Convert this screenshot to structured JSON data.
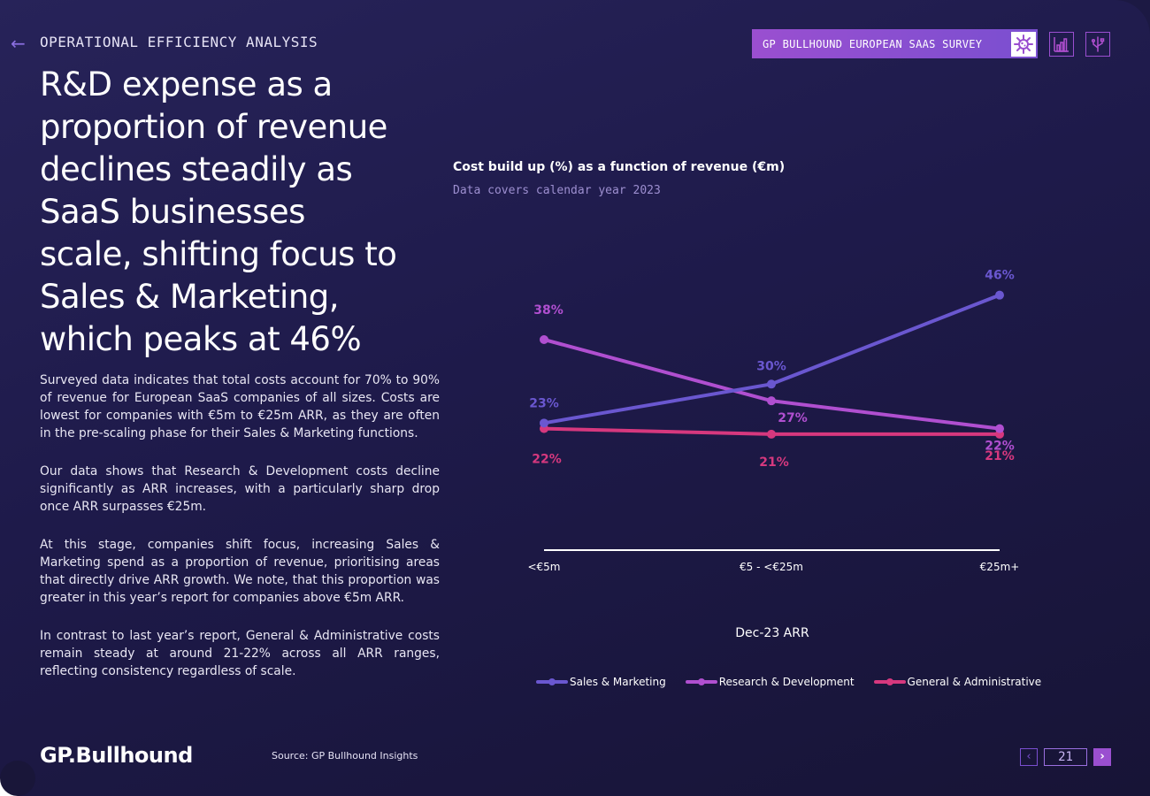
{
  "header": {
    "back_label": "←",
    "section_label": "OPERATIONAL EFFICIENCY ANALYSIS",
    "survey_badge": "GP BULLHOUND EUROPEAN SAAS SURVEY",
    "icons": [
      "virus-icon",
      "bar-chart-icon",
      "usb-icon"
    ]
  },
  "headline": "R&D expense as a proportion of revenue declines steadily as SaaS businesses scale, shifting focus to Sales & Marketing, which peaks at 46%",
  "body": {
    "p1": "Surveyed data indicates that total costs account for 70% to 90% of revenue for European SaaS companies of all sizes. Costs are lowest for companies with €5m to €25m ARR, as they are often in the pre-scaling phase for their Sales & Marketing functions.",
    "p2": "Our data shows that Research & Development costs decline significantly as ARR increases, with a particularly sharp drop once ARR surpasses €25m.",
    "p3": "At this stage, companies shift focus, increasing Sales & Marketing spend as a proportion of revenue, prioritising areas that directly drive ARR growth. We note, that this proportion was greater in this year’s report for companies above €5m ARR.",
    "p4": "In contrast to last year’s report, General & Administrative costs remain steady at around 21-22% across all ARR ranges, reflecting consistency regardless of scale."
  },
  "colors": {
    "sales_marketing": "#6a57d0",
    "research_development": "#b04fd0",
    "general_admin": "#d6387e"
  },
  "chart_data": {
    "type": "line",
    "title": "Cost build up (%) as a function of revenue (€m)",
    "subtitle": "Data covers calendar year 2023",
    "xlabel": "Dec-23 ARR",
    "ylabel": "",
    "categories": [
      "<€5m",
      "€5 - <€25m",
      "€25m+"
    ],
    "ylim": [
      0,
      50
    ],
    "series": [
      {
        "name": "Sales & Marketing",
        "values": [
          23,
          30,
          46
        ],
        "labels": [
          "23%",
          "30%",
          "46%"
        ],
        "color": "#6a57d0"
      },
      {
        "name": "Research & Development",
        "values": [
          38,
          27,
          22
        ],
        "labels": [
          "38%",
          "27%",
          "22%"
        ],
        "color": "#b04fd0"
      },
      {
        "name": "General & Administrative",
        "values": [
          22,
          21,
          21
        ],
        "labels": [
          "22%",
          "21%",
          "21%"
        ],
        "color": "#d6387e"
      }
    ],
    "legend_position": "bottom"
  },
  "footer": {
    "logo": "GP.Bullhound",
    "source": "Source: GP Bullhound Insights",
    "page_number": "21",
    "prev_label": "‹",
    "next_label": "›"
  }
}
